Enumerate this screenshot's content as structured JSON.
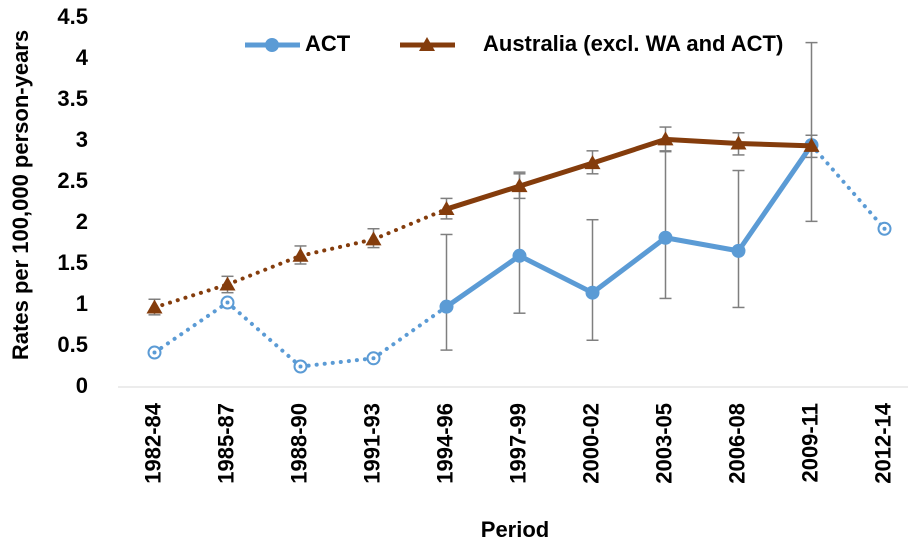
{
  "chart_data": {
    "type": "line",
    "x_label": "Period",
    "y_label": "Rates per 100,000 person-years",
    "categories": [
      "1982-84",
      "1985-87",
      "1988-90",
      "1991-93",
      "1994-96",
      "1997-99",
      "2000-02",
      "2003-05",
      "2006-08",
      "2009-11",
      "2012-14"
    ],
    "series": [
      {
        "name": "ACT",
        "color": "#5b9bd5",
        "marker": "circle",
        "solid_range": [
          4,
          9
        ],
        "values": [
          0.42,
          1.03,
          0.25,
          0.35,
          0.98,
          1.6,
          1.15,
          1.82,
          1.66,
          2.95,
          1.93
        ],
        "error_low": [
          null,
          null,
          null,
          null,
          0.45,
          0.9,
          0.57,
          1.08,
          0.97,
          2.02,
          null
        ],
        "error_high": [
          null,
          null,
          null,
          null,
          1.86,
          2.62,
          2.04,
          2.87,
          2.64,
          4.2,
          null
        ]
      },
      {
        "name": "Australia (excl. WA and ACT)",
        "color": "#843c0c",
        "marker": "triangle",
        "solid_range": [
          4,
          9
        ],
        "values": [
          0.97,
          1.25,
          1.6,
          1.8,
          2.17,
          2.45,
          2.73,
          3.02,
          2.97,
          2.94,
          null
        ],
        "error_low": [
          0.88,
          1.15,
          1.5,
          1.7,
          2.05,
          2.3,
          2.6,
          2.88,
          2.83,
          2.8,
          null
        ],
        "error_high": [
          1.07,
          1.35,
          1.72,
          1.93,
          2.3,
          2.6,
          2.88,
          3.17,
          3.1,
          3.07,
          null
        ]
      }
    ],
    "ylim": [
      0,
      4.5
    ],
    "yticks": [
      0,
      0.5,
      1,
      1.5,
      2,
      2.5,
      3,
      3.5,
      4,
      4.5
    ],
    "grid": false,
    "legend": "top"
  }
}
